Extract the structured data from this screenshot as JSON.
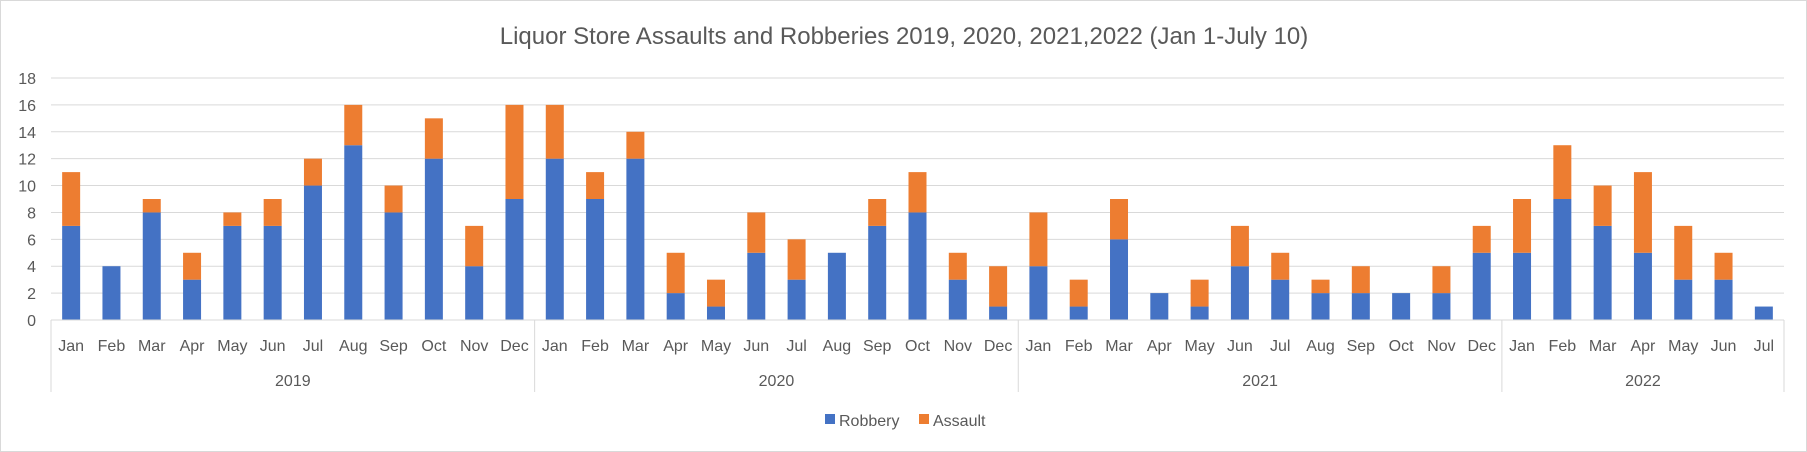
{
  "chart_data": {
    "type": "bar",
    "stacked": true,
    "title": "Liquor Store Assaults and Robberies 2019, 2020, 2021,2022 (Jan 1-July 10)",
    "xlabel": "",
    "ylabel": "",
    "ylim": [
      0,
      18
    ],
    "yticks": [
      0,
      2,
      4,
      6,
      8,
      10,
      12,
      14,
      16,
      18
    ],
    "grid": true,
    "legend_position": "bottom",
    "groups": [
      {
        "label": "2019",
        "months": [
          "Jan",
          "Feb",
          "Mar",
          "Apr",
          "May",
          "Jun",
          "Jul",
          "Aug",
          "Sep",
          "Oct",
          "Nov",
          "Dec"
        ]
      },
      {
        "label": "2020",
        "months": [
          "Jan",
          "Feb",
          "Mar",
          "Apr",
          "May",
          "Jun",
          "Jul",
          "Aug",
          "Sep",
          "Oct",
          "Nov",
          "Dec"
        ]
      },
      {
        "label": "2021",
        "months": [
          "Jan",
          "Feb",
          "Mar",
          "Apr",
          "May",
          "Jun",
          "Jul",
          "Aug",
          "Sep",
          "Oct",
          "Nov",
          "Dec"
        ]
      },
      {
        "label": "2022",
        "months": [
          "Jan",
          "Feb",
          "Mar",
          "Apr",
          "May",
          "Jun",
          "Jul"
        ]
      }
    ],
    "series": [
      {
        "name": "Robbery",
        "color": "#4472c4",
        "values": [
          7,
          4,
          8,
          3,
          7,
          7,
          10,
          13,
          8,
          12,
          4,
          9,
          12,
          9,
          12,
          2,
          1,
          5,
          3,
          5,
          7,
          8,
          3,
          1,
          4,
          1,
          6,
          2,
          1,
          4,
          3,
          2,
          2,
          2,
          2,
          5,
          5,
          9,
          7,
          5,
          3,
          3,
          1
        ]
      },
      {
        "name": "Assault",
        "color": "#ed7d31",
        "values": [
          4,
          0,
          1,
          2,
          1,
          2,
          2,
          3,
          2,
          3,
          3,
          7,
          4,
          2,
          2,
          3,
          2,
          3,
          3,
          0,
          2,
          3,
          2,
          3,
          4,
          2,
          3,
          0,
          2,
          3,
          2,
          1,
          2,
          0,
          2,
          2,
          4,
          4,
          3,
          6,
          4,
          2,
          0
        ]
      }
    ]
  }
}
